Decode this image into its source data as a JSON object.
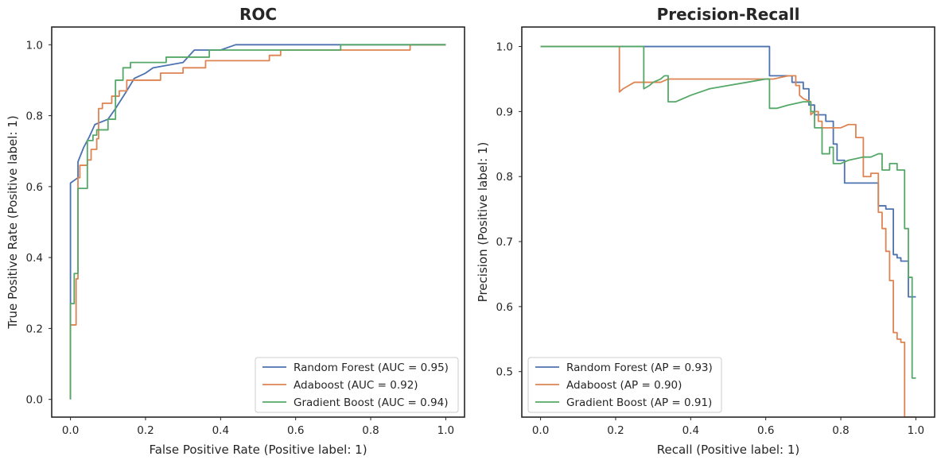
{
  "chart_data": [
    {
      "type": "line",
      "title": "ROC",
      "xlabel": "False Positive Rate (Positive label: 1)",
      "ylabel": "True Positive Rate (Positive label: 1)",
      "xlim": [
        -0.05,
        1.05
      ],
      "ylim": [
        -0.05,
        1.05
      ],
      "xticks": [
        "0.0",
        "0.2",
        "0.4",
        "0.6",
        "0.8",
        "1.0"
      ],
      "yticks": [
        "0.0",
        "0.2",
        "0.4",
        "0.6",
        "0.8",
        "1.0"
      ],
      "grid": false,
      "legend_position": "lower-right",
      "series": [
        {
          "name": "Random Forest (AUC = 0.95)",
          "color": "#4c72b0",
          "step": false,
          "points": [
            [
              0,
              0
            ],
            [
              0,
              0.61
            ],
            [
              0.02,
              0.625
            ],
            [
              0.02,
              0.67
            ],
            [
              0.035,
              0.71
            ],
            [
              0.05,
              0.74
            ],
            [
              0.065,
              0.775
            ],
            [
              0.1,
              0.79
            ],
            [
              0.12,
              0.82
            ],
            [
              0.15,
              0.87
            ],
            [
              0.17,
              0.905
            ],
            [
              0.2,
              0.92
            ],
            [
              0.22,
              0.935
            ],
            [
              0.3,
              0.95
            ],
            [
              0.33,
              0.985
            ],
            [
              0.4,
              0.985
            ],
            [
              0.44,
              1.0
            ],
            [
              1.0,
              1.0
            ]
          ]
        },
        {
          "name": "Adaboost (AUC = 0.92)",
          "color": "#dd8452",
          "step": true,
          "points": [
            [
              0,
              0
            ],
            [
              0,
              0.21
            ],
            [
              0.015,
              0.21
            ],
            [
              0.015,
              0.34
            ],
            [
              0.02,
              0.34
            ],
            [
              0.02,
              0.625
            ],
            [
              0.025,
              0.625
            ],
            [
              0.025,
              0.66
            ],
            [
              0.045,
              0.66
            ],
            [
              0.045,
              0.675
            ],
            [
              0.055,
              0.675
            ],
            [
              0.055,
              0.705
            ],
            [
              0.07,
              0.705
            ],
            [
              0.07,
              0.735
            ],
            [
              0.075,
              0.735
            ],
            [
              0.075,
              0.82
            ],
            [
              0.085,
              0.82
            ],
            [
              0.085,
              0.835
            ],
            [
              0.11,
              0.835
            ],
            [
              0.11,
              0.855
            ],
            [
              0.13,
              0.855
            ],
            [
              0.13,
              0.87
            ],
            [
              0.15,
              0.87
            ],
            [
              0.15,
              0.9
            ],
            [
              0.24,
              0.9
            ],
            [
              0.24,
              0.92
            ],
            [
              0.3,
              0.92
            ],
            [
              0.3,
              0.935
            ],
            [
              0.36,
              0.935
            ],
            [
              0.36,
              0.955
            ],
            [
              0.53,
              0.955
            ],
            [
              0.53,
              0.97
            ],
            [
              0.56,
              0.97
            ],
            [
              0.56,
              0.985
            ],
            [
              0.905,
              0.985
            ],
            [
              0.905,
              1.0
            ],
            [
              1.0,
              1.0
            ]
          ]
        },
        {
          "name": "Gradient Boost (AUC = 0.94)",
          "color": "#55a868",
          "step": true,
          "points": [
            [
              0,
              0
            ],
            [
              0,
              0.27
            ],
            [
              0.01,
              0.27
            ],
            [
              0.01,
              0.355
            ],
            [
              0.02,
              0.355
            ],
            [
              0.02,
              0.595
            ],
            [
              0.045,
              0.595
            ],
            [
              0.045,
              0.73
            ],
            [
              0.06,
              0.73
            ],
            [
              0.06,
              0.745
            ],
            [
              0.07,
              0.745
            ],
            [
              0.07,
              0.76
            ],
            [
              0.1,
              0.76
            ],
            [
              0.1,
              0.79
            ],
            [
              0.12,
              0.79
            ],
            [
              0.12,
              0.9
            ],
            [
              0.14,
              0.9
            ],
            [
              0.14,
              0.935
            ],
            [
              0.16,
              0.935
            ],
            [
              0.16,
              0.95
            ],
            [
              0.255,
              0.95
            ],
            [
              0.255,
              0.965
            ],
            [
              0.37,
              0.965
            ],
            [
              0.37,
              0.985
            ],
            [
              0.72,
              0.985
            ],
            [
              0.72,
              1.0
            ],
            [
              1.0,
              1.0
            ]
          ]
        }
      ]
    },
    {
      "type": "line",
      "title": "Precision-Recall",
      "xlabel": "Recall (Positive label: 1)",
      "ylabel": "Precision (Positive label: 1)",
      "xlim": [
        -0.05,
        1.05
      ],
      "ylim": [
        0.43,
        1.03
      ],
      "xticks": [
        "0.0",
        "0.2",
        "0.4",
        "0.6",
        "0.8",
        "1.0"
      ],
      "yticks": [
        "0.5",
        "0.6",
        "0.7",
        "0.8",
        "0.9",
        "1.0"
      ],
      "grid": false,
      "legend_position": "lower-left",
      "series": [
        {
          "name": "Random Forest (AP = 0.93)",
          "color": "#4c72b0",
          "step": true,
          "points": [
            [
              0,
              1.0
            ],
            [
              0.61,
              1.0
            ],
            [
              0.61,
              0.955
            ],
            [
              0.67,
              0.955
            ],
            [
              0.67,
              0.945
            ],
            [
              0.7,
              0.945
            ],
            [
              0.7,
              0.935
            ],
            [
              0.715,
              0.935
            ],
            [
              0.715,
              0.91
            ],
            [
              0.73,
              0.91
            ],
            [
              0.73,
              0.895
            ],
            [
              0.76,
              0.895
            ],
            [
              0.76,
              0.885
            ],
            [
              0.78,
              0.885
            ],
            [
              0.78,
              0.85
            ],
            [
              0.79,
              0.85
            ],
            [
              0.79,
              0.825
            ],
            [
              0.81,
              0.825
            ],
            [
              0.81,
              0.79
            ],
            [
              0.87,
              0.79
            ],
            [
              0.87,
              0.79
            ],
            [
              0.9,
              0.79
            ],
            [
              0.9,
              0.755
            ],
            [
              0.92,
              0.755
            ],
            [
              0.92,
              0.75
            ],
            [
              0.94,
              0.75
            ],
            [
              0.94,
              0.68
            ],
            [
              0.95,
              0.68
            ],
            [
              0.95,
              0.675
            ],
            [
              0.96,
              0.675
            ],
            [
              0.96,
              0.67
            ],
            [
              0.98,
              0.67
            ],
            [
              0.98,
              0.615
            ],
            [
              1.0,
              0.615
            ]
          ]
        },
        {
          "name": "Adaboost (AP = 0.90)",
          "color": "#dd8452",
          "step": true,
          "points": [
            [
              0,
              1.0
            ],
            [
              0.21,
              1.0
            ],
            [
              0.21,
              0.93
            ],
            [
              0.22,
              0.935
            ],
            [
              0.235,
              0.94
            ],
            [
              0.25,
              0.945
            ],
            [
              0.265,
              0.945
            ],
            [
              0.28,
              0.945
            ],
            [
              0.32,
              0.945
            ],
            [
              0.34,
              0.95
            ],
            [
              0.5,
              0.95
            ],
            [
              0.62,
              0.95
            ],
            [
              0.66,
              0.955
            ],
            [
              0.68,
              0.955
            ],
            [
              0.68,
              0.94
            ],
            [
              0.69,
              0.94
            ],
            [
              0.69,
              0.925
            ],
            [
              0.7,
              0.92
            ],
            [
              0.72,
              0.915
            ],
            [
              0.72,
              0.895
            ],
            [
              0.73,
              0.9
            ],
            [
              0.74,
              0.9
            ],
            [
              0.74,
              0.885
            ],
            [
              0.75,
              0.885
            ],
            [
              0.75,
              0.875
            ],
            [
              0.8,
              0.875
            ],
            [
              0.82,
              0.88
            ],
            [
              0.84,
              0.88
            ],
            [
              0.84,
              0.86
            ],
            [
              0.86,
              0.86
            ],
            [
              0.86,
              0.8
            ],
            [
              0.88,
              0.8
            ],
            [
              0.88,
              0.805
            ],
            [
              0.9,
              0.805
            ],
            [
              0.9,
              0.745
            ],
            [
              0.91,
              0.745
            ],
            [
              0.91,
              0.72
            ],
            [
              0.92,
              0.72
            ],
            [
              0.92,
              0.685
            ],
            [
              0.93,
              0.685
            ],
            [
              0.93,
              0.64
            ],
            [
              0.94,
              0.64
            ],
            [
              0.94,
              0.56
            ],
            [
              0.95,
              0.56
            ],
            [
              0.95,
              0.55
            ],
            [
              0.96,
              0.55
            ],
            [
              0.96,
              0.545
            ],
            [
              0.97,
              0.545
            ],
            [
              0.97,
              0.43
            ],
            [
              0.98,
              0.43
            ],
            [
              0.98,
              0.43
            ],
            [
              1.0,
              0.43
            ]
          ]
        },
        {
          "name": "Gradient Boost (AP = 0.91)",
          "color": "#55a868",
          "step": true,
          "points": [
            [
              0,
              1.0
            ],
            [
              0.275,
              1.0
            ],
            [
              0.275,
              0.935
            ],
            [
              0.29,
              0.94
            ],
            [
              0.3,
              0.945
            ],
            [
              0.32,
              0.95
            ],
            [
              0.33,
              0.955
            ],
            [
              0.34,
              0.955
            ],
            [
              0.34,
              0.915
            ],
            [
              0.36,
              0.915
            ],
            [
              0.4,
              0.925
            ],
            [
              0.45,
              0.935
            ],
            [
              0.5,
              0.94
            ],
            [
              0.55,
              0.945
            ],
            [
              0.6,
              0.95
            ],
            [
              0.61,
              0.95
            ],
            [
              0.61,
              0.905
            ],
            [
              0.63,
              0.905
            ],
            [
              0.66,
              0.91
            ],
            [
              0.7,
              0.915
            ],
            [
              0.72,
              0.915
            ],
            [
              0.72,
              0.9
            ],
            [
              0.73,
              0.9
            ],
            [
              0.73,
              0.875
            ],
            [
              0.75,
              0.875
            ],
            [
              0.75,
              0.835
            ],
            [
              0.77,
              0.835
            ],
            [
              0.77,
              0.845
            ],
            [
              0.78,
              0.845
            ],
            [
              0.78,
              0.82
            ],
            [
              0.8,
              0.82
            ],
            [
              0.82,
              0.825
            ],
            [
              0.86,
              0.83
            ],
            [
              0.88,
              0.83
            ],
            [
              0.9,
              0.835
            ],
            [
              0.91,
              0.835
            ],
            [
              0.91,
              0.81
            ],
            [
              0.93,
              0.81
            ],
            [
              0.93,
              0.82
            ],
            [
              0.95,
              0.82
            ],
            [
              0.95,
              0.81
            ],
            [
              0.97,
              0.81
            ],
            [
              0.97,
              0.72
            ],
            [
              0.98,
              0.72
            ],
            [
              0.98,
              0.645
            ],
            [
              0.99,
              0.645
            ],
            [
              0.99,
              0.49
            ],
            [
              1.0,
              0.49
            ]
          ]
        }
      ]
    }
  ]
}
